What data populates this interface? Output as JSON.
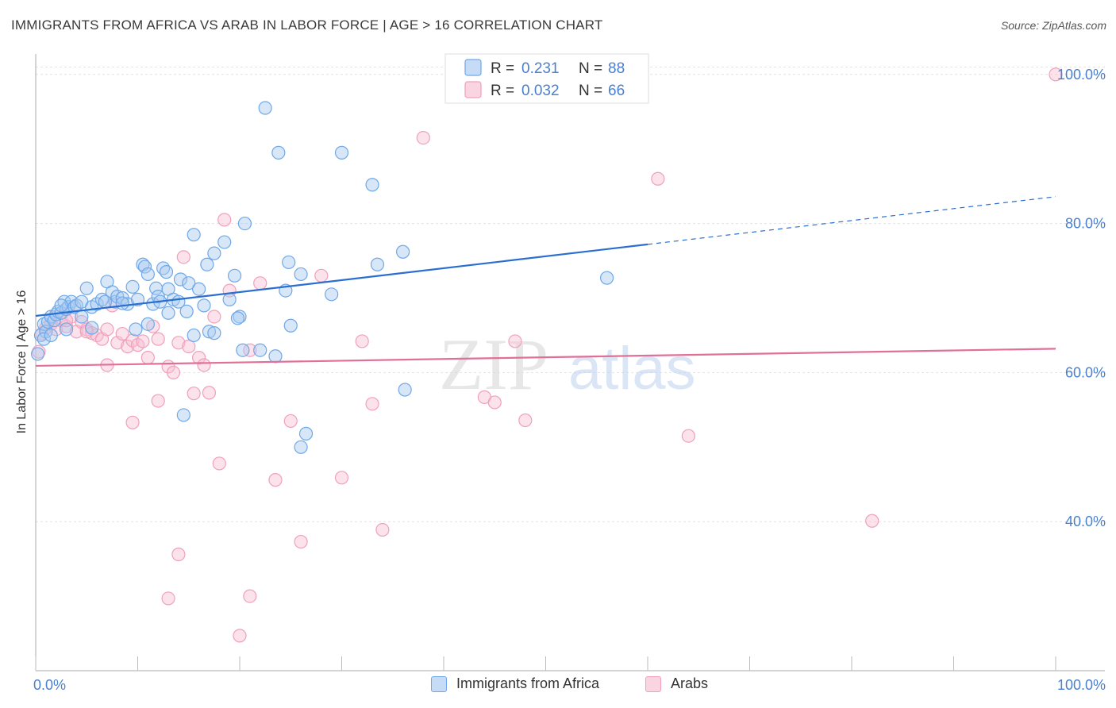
{
  "title": "IMMIGRANTS FROM AFRICA VS ARAB IN LABOR FORCE | AGE > 16 CORRELATION CHART",
  "source": "Source: ZipAtlas.com",
  "watermark": {
    "zip": "ZIP",
    "atlas": "atlas"
  },
  "colors": {
    "blue": "#6fa8e8",
    "blue_line": "#2a6fd0",
    "pink": "#f0a0bc",
    "pink_line": "#e07098",
    "tick_text": "#4a80d0",
    "grid": "#e2e2e2"
  },
  "legend": {
    "rows": [
      {
        "r_label": "R =",
        "r_value": "0.231",
        "n_label": "N =",
        "n_value": "88"
      },
      {
        "r_label": "R =",
        "r_value": "0.032",
        "n_label": "N =",
        "n_value": "66"
      }
    ]
  },
  "chart_data": {
    "type": "scatter",
    "xlabel": "",
    "ylabel": "In Labor Force | Age > 16",
    "xlim": [
      0,
      100
    ],
    "ylim": [
      20,
      102
    ],
    "x_tick_labels": [
      {
        "value": 0,
        "label": "0.0%"
      },
      {
        "value": 100,
        "label": "100.0%"
      }
    ],
    "y_tick_labels": [
      {
        "value": 100,
        "label": "100.0%"
      },
      {
        "value": 80,
        "label": "80.0%"
      },
      {
        "value": 60,
        "label": "60.0%"
      },
      {
        "value": 40,
        "label": "40.0%"
      }
    ],
    "grid": true,
    "legend_position": "top-center",
    "series": [
      {
        "name": "Immigrants from Africa",
        "color": "#6fa8e8",
        "trend": {
          "x0": 0,
          "y0": 67.6,
          "x1": 60,
          "y1": 77.2,
          "dashed_to_x": 100,
          "dashed_to_y": 83.6
        },
        "points": [
          [
            0.2,
            62.5
          ],
          [
            0.5,
            65.0
          ],
          [
            0.8,
            66.5
          ],
          [
            1.0,
            65.5
          ],
          [
            1.2,
            66.8
          ],
          [
            1.5,
            67.5
          ],
          [
            1.8,
            67.0
          ],
          [
            2.0,
            67.8
          ],
          [
            2.2,
            68.2
          ],
          [
            2.5,
            68.0
          ],
          [
            2.8,
            69.5
          ],
          [
            3.0,
            68.5
          ],
          [
            3.2,
            68.8
          ],
          [
            3.5,
            69.5
          ],
          [
            3.8,
            68.8
          ],
          [
            4.0,
            69.0
          ],
          [
            4.5,
            69.5
          ],
          [
            5.0,
            71.3
          ],
          [
            5.5,
            68.8
          ],
          [
            6.0,
            69.2
          ],
          [
            6.5,
            69.8
          ],
          [
            7.0,
            72.2
          ],
          [
            7.5,
            70.8
          ],
          [
            7.8,
            69.5
          ],
          [
            8.0,
            70.2
          ],
          [
            8.5,
            70.0
          ],
          [
            9.0,
            69.2
          ],
          [
            9.5,
            71.5
          ],
          [
            10.0,
            69.8
          ],
          [
            10.5,
            74.5
          ],
          [
            10.7,
            74.2
          ],
          [
            11.0,
            73.2
          ],
          [
            11.5,
            69.2
          ],
          [
            11.8,
            71.3
          ],
          [
            12.0,
            70.2
          ],
          [
            12.5,
            74.0
          ],
          [
            12.8,
            73.5
          ],
          [
            13.0,
            71.2
          ],
          [
            13.5,
            69.8
          ],
          [
            14.0,
            69.5
          ],
          [
            14.2,
            72.5
          ],
          [
            14.8,
            68.2
          ],
          [
            15.0,
            72.0
          ],
          [
            15.5,
            78.5
          ],
          [
            16.0,
            71.2
          ],
          [
            16.5,
            69.0
          ],
          [
            16.8,
            74.5
          ],
          [
            17.5,
            76.0
          ],
          [
            18.5,
            77.5
          ],
          [
            19.0,
            69.8
          ],
          [
            19.5,
            73.0
          ],
          [
            20.0,
            67.5
          ],
          [
            20.5,
            80.0
          ],
          [
            22.0,
            63.0
          ],
          [
            22.5,
            95.5
          ],
          [
            23.5,
            62.2
          ],
          [
            23.8,
            89.5
          ],
          [
            24.5,
            71.0
          ],
          [
            24.8,
            74.8
          ],
          [
            25.0,
            66.3
          ],
          [
            26.0,
            73.2
          ],
          [
            29.0,
            70.5
          ],
          [
            30.0,
            89.5
          ],
          [
            33.0,
            85.2
          ],
          [
            33.5,
            74.5
          ],
          [
            36.0,
            76.2
          ],
          [
            36.2,
            57.7
          ],
          [
            26.0,
            50.0
          ],
          [
            26.5,
            51.8
          ],
          [
            14.5,
            54.3
          ],
          [
            15.5,
            65.0
          ],
          [
            17.0,
            65.5
          ],
          [
            17.5,
            65.3
          ],
          [
            19.8,
            67.3
          ],
          [
            20.3,
            63.0
          ],
          [
            56.0,
            72.7
          ],
          [
            3.0,
            65.8
          ],
          [
            4.5,
            67.5
          ],
          [
            5.5,
            66.0
          ],
          [
            8.5,
            69.3
          ],
          [
            9.8,
            65.8
          ],
          [
            12.2,
            69.5
          ],
          [
            0.8,
            64.5
          ],
          [
            1.5,
            65.0
          ],
          [
            2.5,
            69.0
          ],
          [
            6.8,
            69.5
          ],
          [
            11.0,
            66.5
          ],
          [
            13.0,
            68.0
          ]
        ]
      },
      {
        "name": "Arabs",
        "color": "#f0a0bc",
        "trend": {
          "x0": 0,
          "y0": 60.9,
          "x1": 100,
          "y1": 63.2
        },
        "points": [
          [
            0.3,
            62.8
          ],
          [
            0.6,
            65.2
          ],
          [
            1.0,
            66.0
          ],
          [
            1.5,
            66.5
          ],
          [
            2.0,
            65.8
          ],
          [
            2.5,
            67.0
          ],
          [
            3.0,
            66.2
          ],
          [
            3.5,
            67.5
          ],
          [
            4.0,
            65.5
          ],
          [
            4.5,
            66.8
          ],
          [
            5.0,
            65.8
          ],
          [
            5.5,
            65.3
          ],
          [
            6.0,
            65.0
          ],
          [
            6.5,
            64.5
          ],
          [
            7.0,
            61.0
          ],
          [
            7.5,
            69.0
          ],
          [
            8.0,
            64.0
          ],
          [
            8.5,
            65.2
          ],
          [
            9.0,
            63.5
          ],
          [
            9.5,
            64.3
          ],
          [
            10.0,
            63.7
          ],
          [
            10.5,
            64.2
          ],
          [
            11.0,
            62.0
          ],
          [
            11.5,
            66.2
          ],
          [
            12.0,
            56.2
          ],
          [
            13.0,
            60.8
          ],
          [
            13.5,
            60.0
          ],
          [
            14.0,
            64.0
          ],
          [
            14.5,
            75.5
          ],
          [
            15.0,
            63.5
          ],
          [
            15.5,
            57.2
          ],
          [
            16.0,
            62.0
          ],
          [
            16.5,
            61.0
          ],
          [
            17.0,
            57.3
          ],
          [
            17.5,
            67.5
          ],
          [
            18.0,
            47.8
          ],
          [
            18.5,
            80.5
          ],
          [
            19.0,
            71.0
          ],
          [
            21.0,
            63.0
          ],
          [
            22.0,
            72.0
          ],
          [
            23.5,
            45.6
          ],
          [
            25.0,
            53.5
          ],
          [
            26.0,
            37.3
          ],
          [
            28.0,
            73.0
          ],
          [
            30.0,
            45.9
          ],
          [
            32.0,
            64.2
          ],
          [
            33.0,
            55.8
          ],
          [
            34.0,
            38.9
          ],
          [
            38.0,
            91.5
          ],
          [
            44.0,
            56.7
          ],
          [
            45.0,
            56.0
          ],
          [
            47.0,
            64.2
          ],
          [
            48.0,
            53.6
          ],
          [
            61.0,
            86.0
          ],
          [
            64.0,
            51.5
          ],
          [
            82.0,
            40.1
          ],
          [
            100.0,
            100.0
          ],
          [
            14.0,
            35.6
          ],
          [
            13.0,
            29.7
          ],
          [
            21.0,
            30.0
          ],
          [
            20.0,
            24.7
          ],
          [
            9.5,
            53.3
          ],
          [
            5.0,
            65.5
          ],
          [
            3.0,
            67.0
          ],
          [
            7.0,
            65.8
          ],
          [
            12.0,
            64.5
          ]
        ]
      }
    ]
  },
  "bottom_legend": [
    {
      "label": "Immigrants from Africa",
      "color": "#6fa8e8"
    },
    {
      "label": "Arabs",
      "color": "#f0a0bc"
    }
  ]
}
